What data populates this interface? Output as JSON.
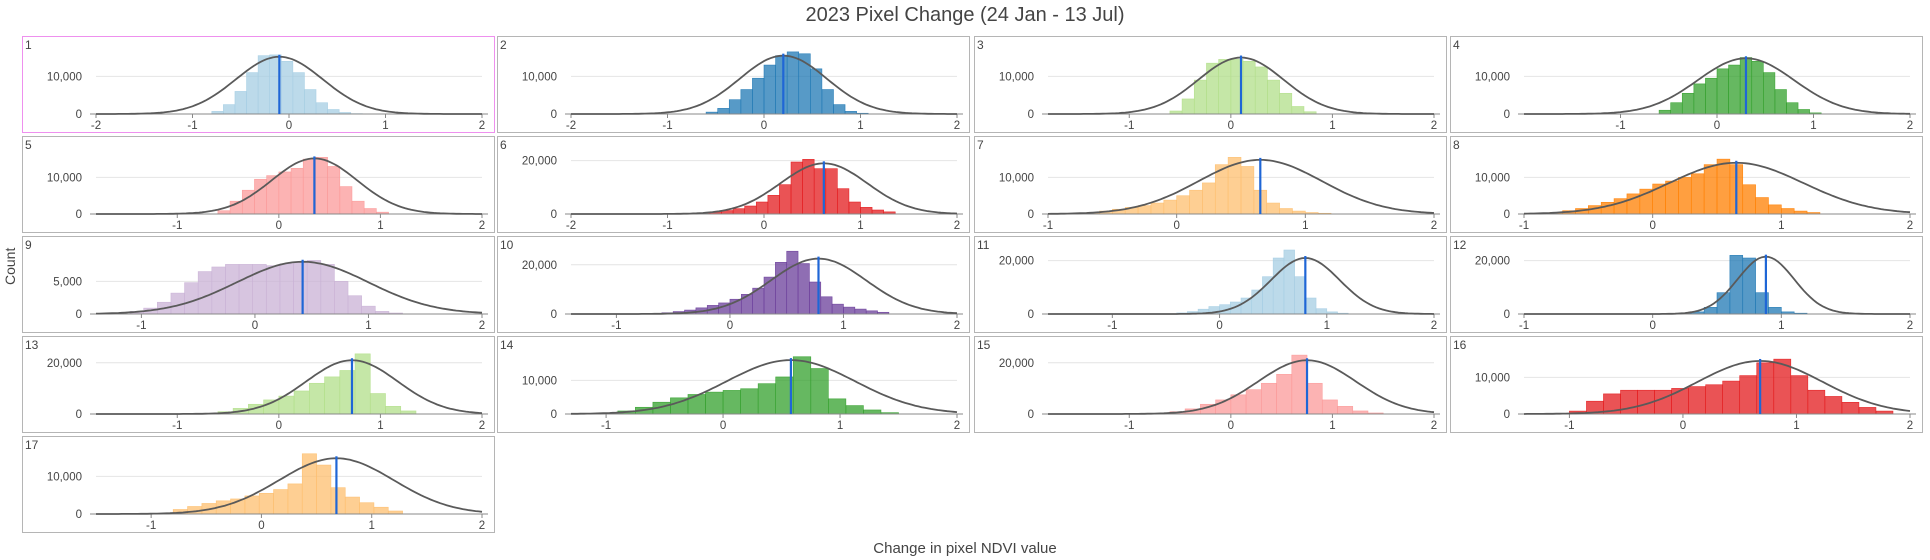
{
  "title": "2023 Pixel Change (24 Jan - 13 Jul)",
  "ylabel": "Count",
  "xlabel": "Change in pixel NDVI value",
  "selected_panel": "1",
  "chart_data": [
    {
      "type": "bar",
      "label": "1",
      "color": "#a6cee3",
      "opacity": 0.75,
      "xlim": [
        -2,
        2
      ],
      "xticks": [
        -2,
        -1,
        0,
        1,
        2
      ],
      "ylim": [
        0,
        17000
      ],
      "yticks": [
        0,
        10000
      ],
      "ytick_labels": [
        "0",
        "10,000"
      ],
      "mean": -0.1,
      "std": 0.45,
      "peak": 15200,
      "bins_start": -0.8,
      "bin_width": 0.12,
      "values": [
        700,
        2500,
        6000,
        11000,
        15500,
        15700,
        14000,
        11000,
        6500,
        3000,
        1200,
        400,
        100
      ]
    },
    {
      "type": "bar",
      "label": "2",
      "color": "#1f78b4",
      "opacity": 0.75,
      "xlim": [
        -2,
        2
      ],
      "xticks": [
        -2,
        -1,
        0,
        1,
        2
      ],
      "ylim": [
        0,
        17000
      ],
      "yticks": [
        0,
        10000
      ],
      "ytick_labels": [
        "0",
        "10,000"
      ],
      "mean": 0.2,
      "std": 0.45,
      "peak": 15500,
      "bins_start": -0.6,
      "bin_width": 0.12,
      "values": [
        500,
        1500,
        3800,
        6500,
        9500,
        13000,
        15500,
        16500,
        16000,
        12000,
        6500,
        2500,
        700,
        200
      ]
    },
    {
      "type": "bar",
      "label": "3",
      "color": "#b2df8a",
      "opacity": 0.75,
      "xlim": [
        -1.8,
        2
      ],
      "xticks": [
        -1,
        0,
        1,
        2
      ],
      "ylim": [
        0,
        17000
      ],
      "yticks": [
        0,
        10000
      ],
      "ytick_labels": [
        "0",
        "10,000"
      ],
      "mean": 0.1,
      "std": 0.42,
      "peak": 15000,
      "bins_start": -0.6,
      "bin_width": 0.12,
      "values": [
        800,
        4000,
        9000,
        13500,
        14500,
        14500,
        14000,
        12500,
        9000,
        5500,
        2000,
        600
      ]
    },
    {
      "type": "bar",
      "label": "4",
      "color": "#33a02c",
      "opacity": 0.75,
      "xlim": [
        -2,
        2
      ],
      "xticks": [
        -1,
        0,
        1,
        2
      ],
      "ylim": [
        0,
        17000
      ],
      "yticks": [
        0,
        10000
      ],
      "ytick_labels": [
        "0",
        "10,000"
      ],
      "mean": 0.3,
      "std": 0.5,
      "peak": 14800,
      "bins_start": -0.6,
      "bin_width": 0.12,
      "values": [
        1000,
        3000,
        5500,
        8000,
        9500,
        12000,
        13000,
        15000,
        14000,
        11000,
        6500,
        3000,
        1200,
        300
      ]
    },
    {
      "type": "bar",
      "label": "5",
      "color": "#fb9a99",
      "opacity": 0.75,
      "xlim": [
        -1.8,
        2
      ],
      "xticks": [
        -1,
        0,
        1,
        2
      ],
      "ylim": [
        0,
        17500
      ],
      "yticks": [
        0,
        10000
      ],
      "ytick_labels": [
        "0",
        "10,000"
      ],
      "mean": 0.35,
      "std": 0.42,
      "peak": 15200,
      "bins_start": -0.6,
      "bin_width": 0.12,
      "values": [
        900,
        3500,
        6500,
        9500,
        10500,
        11500,
        12500,
        15000,
        15500,
        13000,
        7500,
        3500,
        1500,
        500
      ]
    },
    {
      "type": "bar",
      "label": "6",
      "color": "#e31a1c",
      "opacity": 0.75,
      "xlim": [
        -2,
        2
      ],
      "xticks": [
        -2,
        -1,
        0,
        1,
        2
      ],
      "ylim": [
        0,
        24000
      ],
      "yticks": [
        0,
        20000
      ],
      "ytick_labels": [
        "0",
        "20,000"
      ],
      "mean": 0.62,
      "std": 0.45,
      "peak": 19000,
      "bins_start": -0.8,
      "bin_width": 0.12,
      "values": [
        200,
        400,
        800,
        1300,
        2000,
        3000,
        4500,
        7000,
        11000,
        19500,
        20500,
        17000,
        17000,
        9500,
        4500,
        2500,
        1500,
        800
      ]
    },
    {
      "type": "bar",
      "label": "7",
      "color": "#fdbf6f",
      "opacity": 0.75,
      "xlim": [
        -1,
        2
      ],
      "xticks": [
        -1,
        0,
        1,
        2
      ],
      "ylim": [
        0,
        17500
      ],
      "yticks": [
        0,
        10000
      ],
      "ytick_labels": [
        "0",
        "10,000"
      ],
      "mean": 0.65,
      "std": 0.48,
      "peak": 14800,
      "bins_start": -0.8,
      "bin_width": 0.1,
      "values": [
        200,
        400,
        800,
        1300,
        1800,
        2300,
        3000,
        3800,
        5000,
        6500,
        8500,
        13500,
        15500,
        13000,
        6500,
        3000,
        1500,
        800,
        400,
        200
      ]
    },
    {
      "type": "bar",
      "label": "8",
      "color": "#ff7f00",
      "opacity": 0.75,
      "xlim": [
        -1,
        2
      ],
      "xticks": [
        -1,
        0,
        1,
        2
      ],
      "ylim": [
        0,
        17500
      ],
      "yticks": [
        0,
        10000
      ],
      "ytick_labels": [
        "0",
        "10,000"
      ],
      "mean": 0.65,
      "std": 0.52,
      "peak": 14000,
      "bins_start": -0.8,
      "bin_width": 0.1,
      "values": [
        400,
        900,
        1500,
        2300,
        3200,
        4200,
        5500,
        6800,
        8200,
        9000,
        10000,
        11000,
        13500,
        15000,
        13500,
        8000,
        4500,
        2500,
        1500,
        800,
        400
      ]
    },
    {
      "type": "bar",
      "label": "9",
      "color": "#cab2d6",
      "opacity": 0.75,
      "xlim": [
        -1.4,
        2
      ],
      "xticks": [
        -1,
        0,
        1,
        2
      ],
      "ylim": [
        0,
        9800
      ],
      "yticks": [
        0,
        5000
      ],
      "ytick_labels": [
        "0",
        "5,000"
      ],
      "mean": 0.42,
      "std": 0.58,
      "peak": 8000,
      "bins_start": -1.1,
      "bin_width": 0.12,
      "values": [
        400,
        900,
        1800,
        3200,
        4800,
        6500,
        7200,
        7600,
        7600,
        7600,
        7400,
        7700,
        8000,
        8200,
        7600,
        5000,
        2800,
        1200,
        400,
        150
      ]
    },
    {
      "type": "bar",
      "label": "10",
      "color": "#6a3d9a",
      "opacity": 0.75,
      "xlim": [
        -1.4,
        2
      ],
      "xticks": [
        -1,
        0,
        1,
        2
      ],
      "ylim": [
        0,
        26000
      ],
      "yticks": [
        0,
        20000
      ],
      "ytick_labels": [
        "0",
        "20,000"
      ],
      "mean": 0.78,
      "std": 0.42,
      "peak": 22500,
      "bins_start": -0.6,
      "bin_width": 0.1,
      "values": [
        500,
        1000,
        1600,
        2500,
        3500,
        4500,
        6000,
        8000,
        10500,
        15000,
        21000,
        25500,
        20500,
        13000,
        7000,
        4000,
        2800,
        2000,
        1300,
        700
      ]
    },
    {
      "type": "bar",
      "label": "11",
      "color": "#a6cee3",
      "opacity": 0.75,
      "xlim": [
        -1.6,
        2
      ],
      "xticks": [
        -1,
        0,
        1,
        2
      ],
      "ylim": [
        0,
        24000
      ],
      "yticks": [
        0,
        20000
      ],
      "ytick_labels": [
        "0",
        "20,000"
      ],
      "mean": 0.8,
      "std": 0.32,
      "peak": 21000,
      "bins_start": -0.4,
      "bin_width": 0.1,
      "values": [
        400,
        900,
        1800,
        2800,
        3500,
        4500,
        6000,
        9000,
        14000,
        21000,
        24000,
        14000,
        6000,
        2000,
        800,
        300
      ]
    },
    {
      "type": "bar",
      "label": "12",
      "color": "#1f78b4",
      "opacity": 0.75,
      "xlim": [
        -1,
        2
      ],
      "xticks": [
        -1,
        0,
        1,
        2
      ],
      "ylim": [
        0,
        24000
      ],
      "yticks": [
        0,
        20000
      ],
      "ytick_labels": [
        "0",
        "20,000"
      ],
      "mean": 0.88,
      "std": 0.22,
      "peak": 21500,
      "bins_start": 0.2,
      "bin_width": 0.1,
      "values": [
        300,
        800,
        2500,
        8000,
        22000,
        21000,
        8000,
        2500,
        800,
        300
      ]
    },
    {
      "type": "bar",
      "label": "13",
      "color": "#b2df8a",
      "opacity": 0.75,
      "xlim": [
        -1.8,
        2
      ],
      "xticks": [
        -1,
        0,
        1,
        2
      ],
      "ylim": [
        0,
        25000
      ],
      "yticks": [
        0,
        20000
      ],
      "ytick_labels": [
        "0",
        "20,000"
      ],
      "mean": 0.72,
      "std": 0.45,
      "peak": 21000,
      "bins_start": -0.6,
      "bin_width": 0.15,
      "values": [
        900,
        2200,
        3800,
        5500,
        7000,
        9000,
        12000,
        14500,
        17000,
        23500,
        8000,
        3000,
        1200
      ]
    },
    {
      "type": "bar",
      "label": "14",
      "color": "#33a02c",
      "opacity": 0.75,
      "xlim": [
        -1.3,
        2
      ],
      "xticks": [
        -1,
        0,
        1,
        2
      ],
      "ylim": [
        0,
        19000
      ],
      "yticks": [
        0,
        10000
      ],
      "ytick_labels": [
        "0",
        "10,000"
      ],
      "mean": 0.58,
      "std": 0.55,
      "peak": 16000,
      "bins_start": -0.9,
      "bin_width": 0.15,
      "values": [
        900,
        2000,
        3500,
        4800,
        5800,
        6500,
        7000,
        7500,
        9000,
        11000,
        17000,
        13500,
        4500,
        2500,
        1200,
        400
      ]
    },
    {
      "type": "bar",
      "label": "15",
      "color": "#fb9a99",
      "opacity": 0.75,
      "xlim": [
        -1.8,
        2
      ],
      "xticks": [
        -1,
        0,
        1,
        2
      ],
      "ylim": [
        0,
        25000
      ],
      "yticks": [
        0,
        20000
      ],
      "ytick_labels": [
        "0",
        "20,000"
      ],
      "mean": 0.75,
      "std": 0.48,
      "peak": 21000,
      "bins_start": -0.6,
      "bin_width": 0.15,
      "values": [
        900,
        2000,
        3800,
        5500,
        7500,
        9500,
        12000,
        15500,
        23000,
        12000,
        5500,
        3000,
        1200,
        400
      ]
    },
    {
      "type": "bar",
      "label": "16",
      "color": "#e31a1c",
      "opacity": 0.75,
      "xlim": [
        -1.4,
        2
      ],
      "xticks": [
        -1,
        0,
        1,
        2
      ],
      "ylim": [
        0,
        17500
      ],
      "yticks": [
        0,
        10000
      ],
      "ytick_labels": [
        "0",
        "10,000"
      ],
      "mean": 0.68,
      "std": 0.55,
      "peak": 14500,
      "bins_start": -1.0,
      "bin_width": 0.15,
      "values": [
        800,
        3500,
        5500,
        6500,
        6500,
        6500,
        7000,
        7500,
        8000,
        9000,
        10500,
        14000,
        15000,
        10500,
        6500,
        4800,
        3200,
        1800,
        800
      ]
    },
    {
      "type": "bar",
      "label": "17",
      "color": "#fdbf6f",
      "opacity": 0.75,
      "xlim": [
        -1.5,
        2
      ],
      "xticks": [
        -1,
        0,
        1,
        2
      ],
      "ylim": [
        0,
        17000
      ],
      "yticks": [
        0,
        10000
      ],
      "ytick_labels": [
        "0",
        "10,000"
      ],
      "mean": 0.68,
      "std": 0.52,
      "peak": 14800,
      "bins_start": -0.8,
      "bin_width": 0.13,
      "values": [
        1200,
        2000,
        2800,
        3500,
        4000,
        4800,
        5500,
        6500,
        8000,
        16000,
        13000,
        7000,
        4500,
        3000,
        1800,
        800
      ]
    }
  ]
}
